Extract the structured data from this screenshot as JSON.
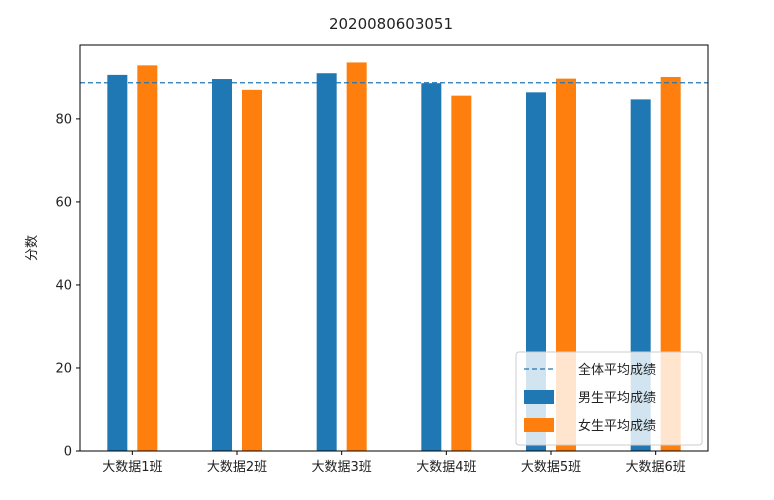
{
  "chart_data": {
    "type": "bar",
    "title": "2020080603051",
    "ylabel": "分数",
    "xlabel": "",
    "categories": [
      "大数据1班",
      "大数据2班",
      "大数据3班",
      "大数据4班",
      "大数据5班",
      "大数据6班"
    ],
    "series": [
      {
        "name": "男生平均成绩",
        "color": "#1f77b4",
        "values": [
          90.6,
          89.6,
          91.0,
          88.6,
          86.4,
          84.7
        ]
      },
      {
        "name": "女生平均成绩",
        "color": "#ff7f0e",
        "values": [
          92.9,
          87.0,
          93.6,
          85.6,
          89.7,
          90.1
        ]
      }
    ],
    "reference_line": {
      "name": "全体平均成绩",
      "value": 88.7,
      "color": "#1f77b4",
      "style": "dashed"
    },
    "ylim": [
      0,
      97.8
    ],
    "yticks": [
      0,
      20,
      40,
      60,
      80
    ],
    "grid": false,
    "legend_position": "lower right"
  }
}
